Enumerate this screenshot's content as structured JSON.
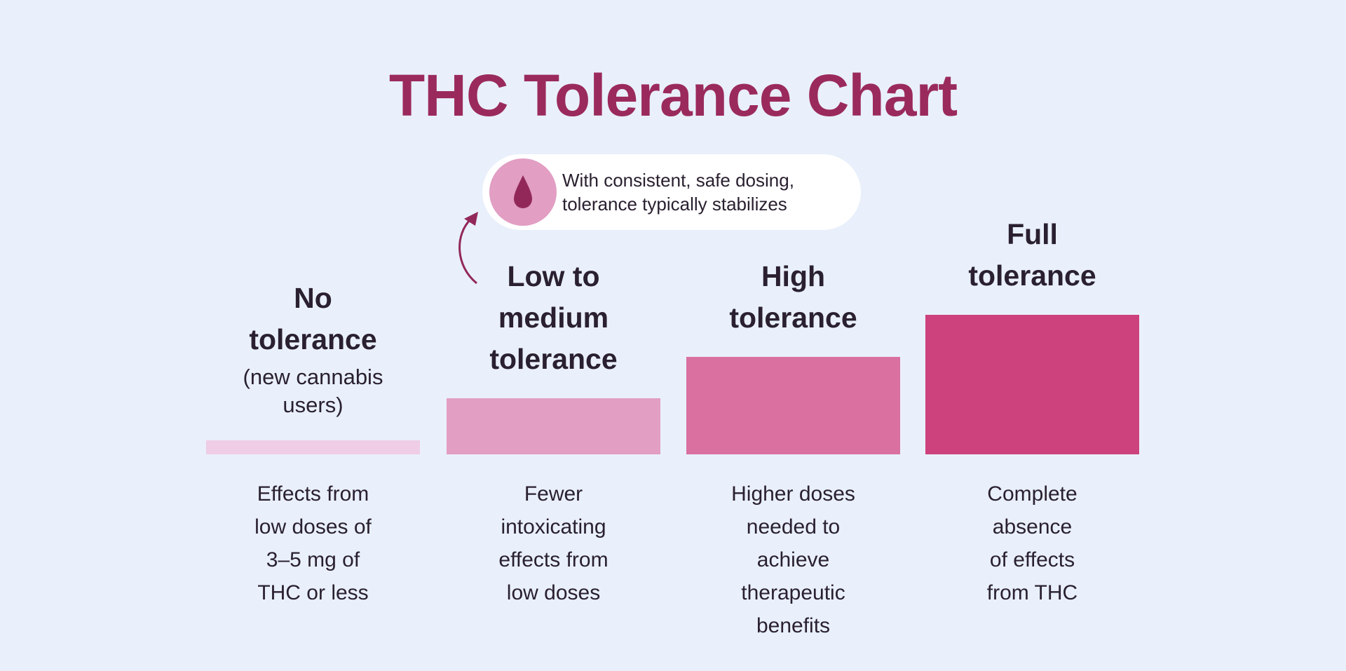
{
  "chart_data": {
    "type": "bar",
    "title": "THC Tolerance Chart",
    "categories": [
      "No tolerance",
      "Low to medium tolerance",
      "High tolerance",
      "Full tolerance"
    ],
    "values": [
      1,
      4,
      7,
      10
    ],
    "ylim": [
      0,
      10
    ],
    "colors": [
      "#efcde6",
      "#e29ec3",
      "#d970a0",
      "#cd427c"
    ],
    "labels": [
      {
        "lines": [
          "No",
          "tolerance"
        ],
        "sub": [
          "(new cannabis",
          "users)"
        ],
        "desc": [
          "Effects from",
          "low doses of",
          "3–5 mg of",
          "THC or less"
        ]
      },
      {
        "lines": [
          "Low to",
          "medium",
          "tolerance"
        ],
        "sub": [],
        "desc": [
          "Fewer",
          "intoxicating",
          "effects from",
          "low doses"
        ]
      },
      {
        "lines": [
          "High",
          "tolerance"
        ],
        "sub": [],
        "desc": [
          "Higher doses",
          "needed to",
          "achieve",
          "therapeutic",
          "benefits"
        ]
      },
      {
        "lines": [
          "Full",
          "tolerance"
        ],
        "sub": [],
        "desc": [
          "Complete",
          "absence",
          "of effects",
          "from THC"
        ]
      }
    ],
    "annotation": {
      "icon": "drop-icon",
      "lines": [
        "With consistent, safe dosing,",
        "tolerance typically stabilizes"
      ]
    }
  },
  "colors": {
    "background": "#e9f0fb",
    "title": "#9b2a5c",
    "text": "#2a2030",
    "drop": "#92285a"
  }
}
